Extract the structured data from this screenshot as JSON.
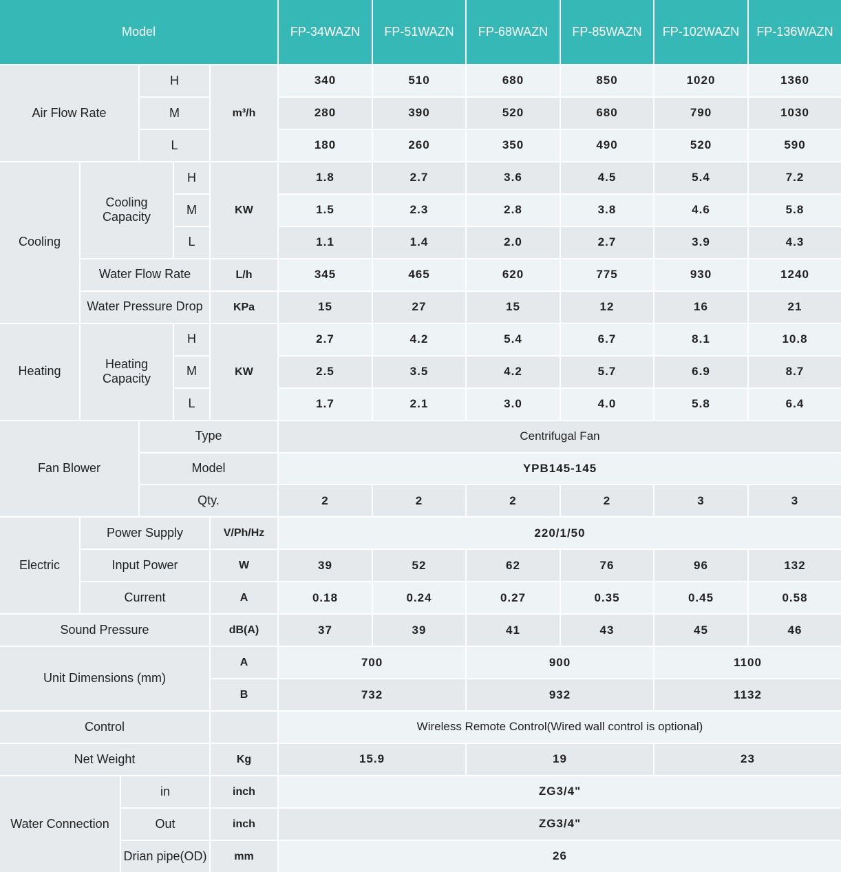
{
  "header": {
    "model_label": "Model",
    "models": [
      "FP-34WAZN",
      "FP-51WAZN",
      "FP-68WAZN",
      "FP-85WAZN",
      "FP-102WAZN",
      "FP-136WAZN"
    ]
  },
  "air_flow": {
    "label": "Air Flow Rate",
    "levels": [
      "H",
      "M",
      "L"
    ],
    "unit": "m³/h",
    "values": [
      [
        "340",
        "510",
        "680",
        "850",
        "1020",
        "1360"
      ],
      [
        "280",
        "390",
        "520",
        "680",
        "790",
        "1030"
      ],
      [
        "180",
        "260",
        "350",
        "490",
        "520",
        "590"
      ]
    ]
  },
  "cooling": {
    "label": "Cooling",
    "capacity_label": "Cooling Capacity",
    "levels": [
      "H",
      "M",
      "L"
    ],
    "capacity_unit": "KW",
    "capacity": [
      [
        "1.8",
        "2.7",
        "3.6",
        "4.5",
        "5.4",
        "7.2"
      ],
      [
        "1.5",
        "2.3",
        "2.8",
        "3.8",
        "4.6",
        "5.8"
      ],
      [
        "1.1",
        "1.4",
        "2.0",
        "2.7",
        "3.9",
        "4.3"
      ]
    ],
    "water_flow": {
      "label": "Water Flow Rate",
      "unit": "L/h",
      "values": [
        "345",
        "465",
        "620",
        "775",
        "930",
        "1240"
      ]
    },
    "pressure_drop": {
      "label": "Water Pressure Drop",
      "unit": "KPa",
      "values": [
        "15",
        "27",
        "15",
        "12",
        "16",
        "21"
      ]
    }
  },
  "heating": {
    "label": "Heating",
    "capacity_label": "Heating Capacity",
    "levels": [
      "H",
      "M",
      "L"
    ],
    "capacity_unit": "KW",
    "capacity": [
      [
        "2.7",
        "4.2",
        "5.4",
        "6.7",
        "8.1",
        "10.8"
      ],
      [
        "2.5",
        "3.5",
        "4.2",
        "5.7",
        "6.9",
        "8.7"
      ],
      [
        "1.7",
        "2.1",
        "3.0",
        "4.0",
        "5.8",
        "6.4"
      ]
    ]
  },
  "fan_blower": {
    "label": "Fan Blower",
    "type": {
      "label": "Type",
      "value": "Centrifugal Fan"
    },
    "model": {
      "label": "Model",
      "value": "YPB145-145"
    },
    "qty": {
      "label": "Qty.",
      "values": [
        "2",
        "2",
        "2",
        "2",
        "3",
        "3"
      ]
    }
  },
  "electric": {
    "label": "Electric",
    "power_supply": {
      "label": "Power Supply",
      "unit": "V/Ph/Hz",
      "value": "220/1/50"
    },
    "input_power": {
      "label": "Input Power",
      "unit": "W",
      "values": [
        "39",
        "52",
        "62",
        "76",
        "96",
        "132"
      ]
    },
    "current": {
      "label": "Current",
      "unit": "A",
      "values": [
        "0.18",
        "0.24",
        "0.27",
        "0.35",
        "0.45",
        "0.58"
      ]
    }
  },
  "sound_pressure": {
    "label": "Sound Pressure",
    "unit": "dB(A)",
    "values": [
      "37",
      "39",
      "41",
      "43",
      "45",
      "46"
    ]
  },
  "unit_dimensions": {
    "label": "Unit Dimensions (mm)",
    "a": {
      "unit": "A",
      "values": [
        "700",
        "900",
        "1100"
      ]
    },
    "b": {
      "unit": "B",
      "values": [
        "732",
        "932",
        "1132"
      ]
    }
  },
  "control": {
    "label": "Control",
    "unit": "",
    "value": "Wireless Remote Control(Wired wall control is optional)"
  },
  "net_weight": {
    "label": "Net Weight",
    "unit": "Kg",
    "values": [
      "15.9",
      "19",
      "23"
    ]
  },
  "water_connection": {
    "label": "Water Connection",
    "in": {
      "label": "in",
      "unit": "inch",
      "value": "ZG3/4\""
    },
    "out": {
      "label": "Out",
      "unit": "inch",
      "value": "ZG3/4\""
    },
    "drain": {
      "label": "Drian pipe(OD)",
      "unit": "mm",
      "value": "26"
    }
  },
  "colors": {
    "header": "#35b8b6",
    "label_bg": "#e6eaed",
    "row_light": "#eef3f6",
    "row_dark": "#e5e9ec"
  }
}
